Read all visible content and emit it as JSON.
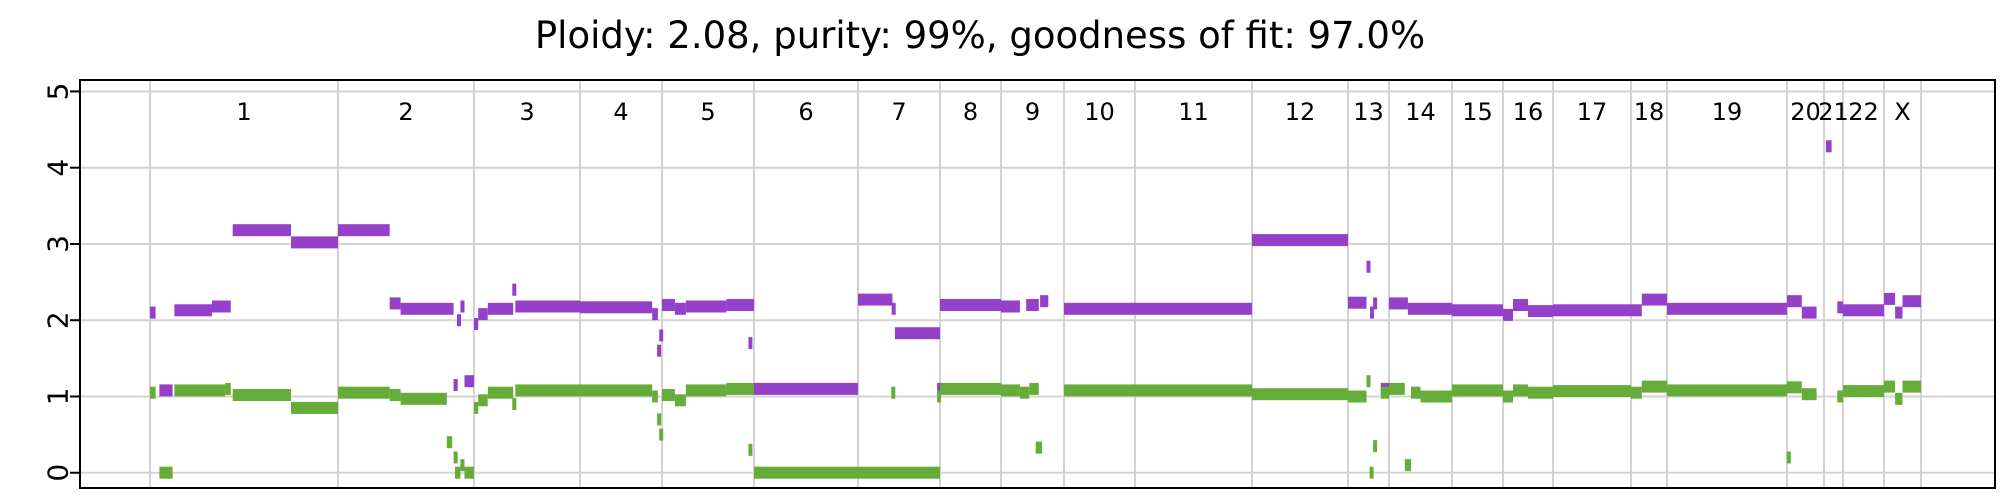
{
  "chart_data": {
    "type": "scatter",
    "title": "Ploidy: 2.08, purity: 99%, goodness of fit: 97.0%",
    "xlabel": "",
    "ylabel": "",
    "ylim": [
      -0.2,
      5.15
    ],
    "y_ticks": [
      "0",
      "1",
      "2",
      "3",
      "4",
      "5"
    ],
    "grid": true,
    "chromosomes": [
      "1",
      "2",
      "3",
      "4",
      "5",
      "6",
      "7",
      "8",
      "9",
      "10",
      "11",
      "12",
      "13",
      "14",
      "15",
      "16",
      "17",
      "18",
      "19",
      "20",
      "21",
      "22",
      "X"
    ],
    "colors": {
      "major": "#9440c8",
      "minor": "#66ac38"
    },
    "series": [
      {
        "key": "major",
        "segments": [
          [
            "1",
            0.0,
            0.03,
            2.1
          ],
          [
            "1",
            0.05,
            0.12,
            1.08
          ],
          [
            "1",
            0.13,
            0.33,
            2.13
          ],
          [
            "1",
            0.33,
            0.43,
            2.18
          ],
          [
            "1",
            0.44,
            0.75,
            3.18
          ],
          [
            "1",
            0.75,
            1.0,
            3.02
          ],
          [
            "2",
            0.0,
            0.38,
            3.18
          ],
          [
            "2",
            0.38,
            0.46,
            2.22
          ],
          [
            "2",
            0.46,
            0.85,
            2.15
          ],
          [
            "2",
            0.85,
            0.88,
            1.15
          ],
          [
            "2",
            0.88,
            0.9,
            2.0
          ],
          [
            "2",
            0.9,
            0.93,
            2.18
          ],
          [
            "2",
            0.93,
            1.0,
            1.2
          ],
          [
            "3",
            0.0,
            0.04,
            1.95
          ],
          [
            "3",
            0.04,
            0.13,
            2.08
          ],
          [
            "3",
            0.13,
            0.37,
            2.15
          ],
          [
            "3",
            0.37,
            0.39,
            2.4
          ],
          [
            "3",
            0.39,
            1.0,
            2.18
          ],
          [
            "4",
            0.0,
            0.88,
            2.17
          ],
          [
            "4",
            0.88,
            0.95,
            2.08
          ],
          [
            "4",
            0.95,
            0.98,
            1.6
          ],
          [
            "4",
            0.98,
            1.0,
            1.8
          ],
          [
            "5",
            0.0,
            0.14,
            2.2
          ],
          [
            "5",
            0.14,
            0.26,
            2.15
          ],
          [
            "5",
            0.26,
            0.7,
            2.18
          ],
          [
            "5",
            0.7,
            1.0,
            2.2
          ],
          [
            "6",
            -0.05,
            -0.02,
            1.7
          ],
          [
            "6",
            0.0,
            1.0,
            1.1
          ],
          [
            "7",
            0.0,
            0.42,
            2.27
          ],
          [
            "7",
            0.42,
            0.45,
            2.15
          ],
          [
            "7",
            0.45,
            1.0,
            1.83
          ],
          [
            "8",
            -0.03,
            0.0,
            1.1
          ],
          [
            "8",
            0.0,
            1.0,
            2.2
          ],
          [
            "9",
            0.0,
            0.3,
            2.18
          ],
          [
            "9",
            0.4,
            0.6,
            2.2
          ],
          [
            "9",
            0.62,
            0.75,
            2.25
          ],
          [
            "10",
            0.0,
            1.0,
            2.15
          ],
          [
            "11",
            0.0,
            1.0,
            2.15
          ],
          [
            "12",
            0.0,
            1.0,
            3.05
          ],
          [
            "13",
            0.0,
            0.45,
            2.23
          ],
          [
            "13",
            0.48,
            0.52,
            2.7
          ],
          [
            "13",
            0.55,
            0.62,
            2.1
          ],
          [
            "13",
            0.62,
            0.7,
            2.22
          ],
          [
            "13",
            0.8,
            1.0,
            1.1
          ],
          [
            "14",
            0.0,
            0.3,
            2.22
          ],
          [
            "14",
            0.3,
            1.0,
            2.15
          ],
          [
            "15",
            0.0,
            1.0,
            2.13
          ],
          [
            "16",
            0.0,
            0.2,
            2.07
          ],
          [
            "16",
            0.2,
            0.5,
            2.2
          ],
          [
            "16",
            0.5,
            1.0,
            2.12
          ],
          [
            "17",
            0.0,
            1.0,
            2.13
          ],
          [
            "18",
            0.0,
            0.3,
            2.13
          ],
          [
            "18",
            0.3,
            1.0,
            2.27
          ],
          [
            "19",
            0.0,
            1.0,
            2.15
          ],
          [
            "20",
            0.0,
            0.4,
            2.25
          ],
          [
            "20",
            0.4,
            0.8,
            2.1
          ],
          [
            "21",
            0.1,
            0.4,
            4.28
          ],
          [
            "21",
            0.7,
            1.0,
            2.17
          ],
          [
            "22",
            0.0,
            1.0,
            2.13
          ],
          [
            "X",
            0.0,
            0.3,
            2.28
          ],
          [
            "X",
            0.3,
            0.5,
            2.1
          ],
          [
            "X",
            0.5,
            1.0,
            2.25
          ]
        ]
      },
      {
        "key": "minor",
        "segments": [
          [
            "1",
            0.0,
            0.03,
            1.05
          ],
          [
            "1",
            0.05,
            0.12,
            0.0
          ],
          [
            "1",
            0.13,
            0.4,
            1.08
          ],
          [
            "1",
            0.4,
            0.43,
            1.1
          ],
          [
            "1",
            0.44,
            0.75,
            1.02
          ],
          [
            "1",
            0.75,
            1.0,
            0.85
          ],
          [
            "2",
            0.0,
            0.38,
            1.05
          ],
          [
            "2",
            0.38,
            0.46,
            1.02
          ],
          [
            "2",
            0.46,
            0.8,
            0.97
          ],
          [
            "2",
            0.8,
            0.84,
            0.4
          ],
          [
            "2",
            0.85,
            0.88,
            0.2
          ],
          [
            "2",
            0.86,
            0.9,
            0.0
          ],
          [
            "2",
            0.9,
            0.93,
            0.1
          ],
          [
            "2",
            0.93,
            1.0,
            0.0
          ],
          [
            "3",
            0.0,
            0.04,
            0.85
          ],
          [
            "3",
            0.04,
            0.13,
            0.95
          ],
          [
            "3",
            0.13,
            0.37,
            1.05
          ],
          [
            "3",
            0.37,
            0.39,
            0.9
          ],
          [
            "3",
            0.39,
            1.0,
            1.08
          ],
          [
            "4",
            0.0,
            0.88,
            1.08
          ],
          [
            "4",
            0.88,
            0.95,
            1.0
          ],
          [
            "4",
            0.95,
            0.98,
            0.7
          ],
          [
            "4",
            0.98,
            1.0,
            0.5
          ],
          [
            "5",
            0.0,
            0.14,
            1.02
          ],
          [
            "5",
            0.14,
            0.26,
            0.95
          ],
          [
            "5",
            0.26,
            0.7,
            1.08
          ],
          [
            "5",
            0.7,
            1.0,
            1.1
          ],
          [
            "6",
            -0.05,
            -0.02,
            0.3
          ],
          [
            "6",
            0.0,
            1.0,
            0.0
          ],
          [
            "7",
            0.0,
            1.0,
            0.0
          ],
          [
            "7",
            0.42,
            0.44,
            1.05
          ],
          [
            "8",
            -0.03,
            0.0,
            1.0
          ],
          [
            "8",
            0.0,
            1.0,
            1.1
          ],
          [
            "9",
            0.0,
            0.3,
            1.08
          ],
          [
            "9",
            0.3,
            0.45,
            1.05
          ],
          [
            "9",
            0.45,
            0.6,
            1.1
          ],
          [
            "9",
            0.55,
            0.65,
            0.33
          ],
          [
            "10",
            0.0,
            1.0,
            1.08
          ],
          [
            "11",
            0.0,
            1.0,
            1.08
          ],
          [
            "12",
            0.0,
            1.0,
            1.03
          ],
          [
            "13",
            0.0,
            0.45,
            1.0
          ],
          [
            "13",
            0.48,
            0.52,
            1.2
          ],
          [
            "13",
            0.55,
            0.6,
            0.0
          ],
          [
            "13",
            0.62,
            0.7,
            0.35
          ],
          [
            "13",
            0.8,
            1.0,
            1.05
          ],
          [
            "14",
            0.0,
            0.25,
            1.1
          ],
          [
            "14",
            0.25,
            0.35,
            0.1
          ],
          [
            "14",
            0.35,
            0.5,
            1.05
          ],
          [
            "14",
            0.5,
            1.0,
            1.0
          ],
          [
            "15",
            0.0,
            1.0,
            1.08
          ],
          [
            "16",
            0.0,
            0.2,
            1.0
          ],
          [
            "16",
            0.2,
            0.5,
            1.08
          ],
          [
            "16",
            0.5,
            1.0,
            1.05
          ],
          [
            "17",
            0.0,
            1.0,
            1.07
          ],
          [
            "18",
            0.0,
            0.3,
            1.05
          ],
          [
            "18",
            0.3,
            1.0,
            1.13
          ],
          [
            "19",
            0.0,
            1.0,
            1.08
          ],
          [
            "20",
            0.0,
            0.1,
            0.2
          ],
          [
            "20",
            0.0,
            0.4,
            1.12
          ],
          [
            "20",
            0.4,
            0.8,
            1.03
          ],
          [
            "21",
            0.7,
            1.0,
            1.0
          ],
          [
            "22",
            0.0,
            1.0,
            1.07
          ],
          [
            "X",
            0.0,
            0.3,
            1.13
          ],
          [
            "X",
            0.3,
            0.5,
            0.97
          ],
          [
            "X",
            0.5,
            1.0,
            1.13
          ]
        ]
      }
    ]
  }
}
